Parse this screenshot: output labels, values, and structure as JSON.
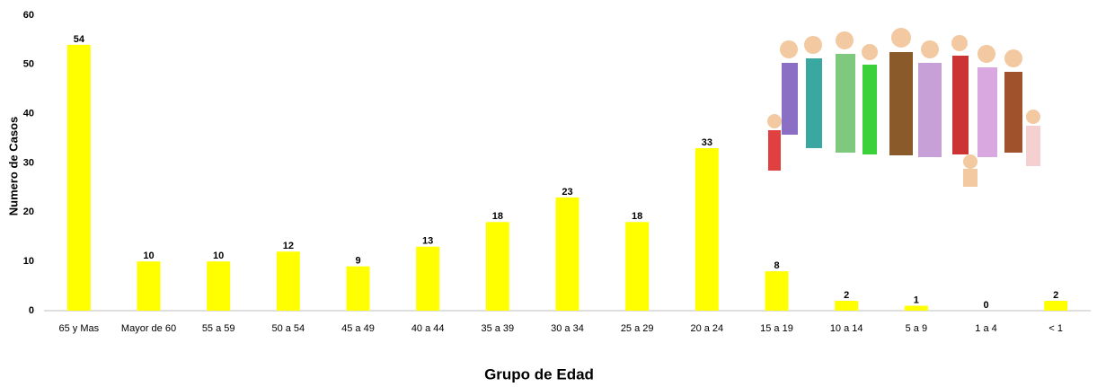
{
  "chart_data": {
    "type": "bar",
    "x_label": "Grupo de Edad",
    "y_label": "Numero de Casos",
    "categories": [
      "65 y Mas",
      "Mayor de 60",
      "55 a 59",
      "50 a 54",
      "45 a 49",
      "40 a 44",
      "35 a 39",
      "30 a 34",
      "25 a 29",
      "20 a 24",
      "15 a 19",
      "10 a 14",
      "5 a 9",
      "1 a 4",
      "< 1"
    ],
    "values": [
      54,
      10,
      10,
      12,
      9,
      13,
      18,
      23,
      18,
      33,
      8,
      2,
      1,
      0,
      2
    ],
    "color": "#ffff00",
    "ylim": [
      0,
      60
    ],
    "yticks": [
      0,
      10,
      20,
      30,
      40,
      50,
      60
    ],
    "grid": false
  }
}
